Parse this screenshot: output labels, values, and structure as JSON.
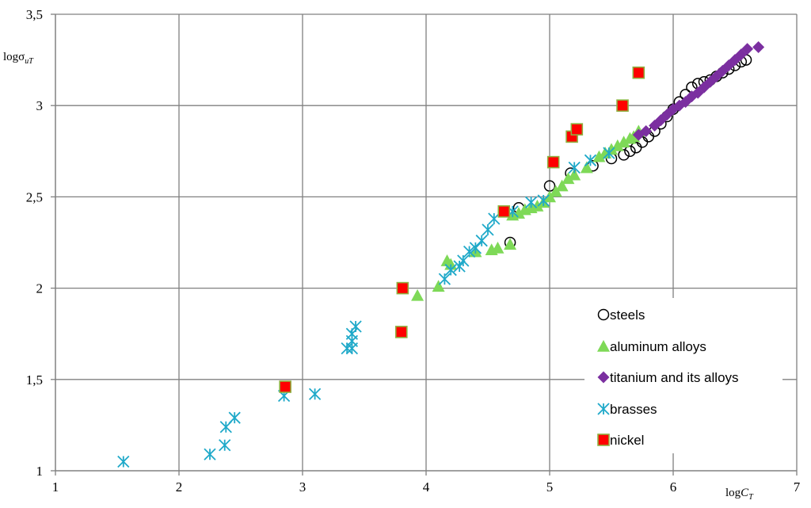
{
  "chart_data": {
    "type": "scatter",
    "xlim": [
      1,
      7
    ],
    "ylim": [
      1,
      3.5
    ],
    "x_ticks": [
      1,
      2,
      3,
      4,
      5,
      6,
      7
    ],
    "y_ticks": [
      1,
      1.5,
      2,
      2.5,
      3,
      3.5
    ],
    "x_tick_labels": [
      "1",
      "2",
      "3",
      "4",
      "5",
      "6",
      "7"
    ],
    "y_tick_labels": [
      "1",
      "1,5",
      "2",
      "2,5",
      "3",
      "3,5"
    ],
    "xlabel": {
      "prefix": "log",
      "main": "C",
      "sub": "T"
    },
    "ylabel": {
      "prefix": "log",
      "main": "σ",
      "sub": "uT"
    },
    "grid": true,
    "legend_position": "bottom-right",
    "colors": {
      "steels": "#000000",
      "aluminum": "#7ED957",
      "titanium": "#7B2FA0",
      "brasses": "#1FA9C9",
      "nickel_fill": "#FF0000",
      "nickel_border": "#8FB040",
      "grid": "#808080"
    },
    "series": [
      {
        "name": "steels",
        "marker": "circle-open",
        "points": [
          [
            4.68,
            2.25
          ],
          [
            4.75,
            2.44
          ],
          [
            5.0,
            2.56
          ],
          [
            5.17,
            2.63
          ],
          [
            5.35,
            2.67
          ],
          [
            5.5,
            2.71
          ],
          [
            5.6,
            2.73
          ],
          [
            5.65,
            2.75
          ],
          [
            5.7,
            2.77
          ],
          [
            5.75,
            2.8
          ],
          [
            5.8,
            2.83
          ],
          [
            5.85,
            2.86
          ],
          [
            5.9,
            2.9
          ],
          [
            5.95,
            2.94
          ],
          [
            6.0,
            2.98
          ],
          [
            6.05,
            3.02
          ],
          [
            6.1,
            3.06
          ],
          [
            6.15,
            3.1
          ],
          [
            6.2,
            3.12
          ],
          [
            6.25,
            3.13
          ],
          [
            6.3,
            3.14
          ],
          [
            6.35,
            3.16
          ],
          [
            6.4,
            3.18
          ],
          [
            6.45,
            3.2
          ],
          [
            6.5,
            3.22
          ],
          [
            6.55,
            3.24
          ],
          [
            6.59,
            3.25
          ]
        ]
      },
      {
        "name": "aluminum alloys",
        "marker": "triangle",
        "points": [
          [
            3.93,
            1.96
          ],
          [
            4.1,
            2.01
          ],
          [
            4.17,
            2.15
          ],
          [
            4.2,
            2.13
          ],
          [
            4.4,
            2.2
          ],
          [
            4.53,
            2.21
          ],
          [
            4.58,
            2.22
          ],
          [
            4.68,
            2.24
          ],
          [
            4.7,
            2.4
          ],
          [
            4.75,
            2.41
          ],
          [
            4.8,
            2.43
          ],
          [
            4.85,
            2.44
          ],
          [
            4.9,
            2.45
          ],
          [
            4.95,
            2.47
          ],
          [
            5.0,
            2.5
          ],
          [
            5.05,
            2.53
          ],
          [
            5.1,
            2.56
          ],
          [
            5.15,
            2.6
          ],
          [
            5.2,
            2.62
          ],
          [
            5.3,
            2.66
          ],
          [
            5.4,
            2.72
          ],
          [
            5.45,
            2.74
          ],
          [
            5.5,
            2.76
          ],
          [
            5.55,
            2.78
          ],
          [
            5.6,
            2.8
          ],
          [
            5.65,
            2.82
          ],
          [
            5.68,
            2.83
          ],
          [
            5.72,
            2.86
          ]
        ]
      },
      {
        "name": "titanium and its alloys",
        "marker": "diamond",
        "points": [
          [
            5.72,
            2.84
          ],
          [
            5.78,
            2.86
          ],
          [
            5.85,
            2.89
          ],
          [
            5.9,
            2.92
          ],
          [
            5.95,
            2.95
          ],
          [
            6.0,
            2.98
          ],
          [
            6.05,
            3.0
          ],
          [
            6.1,
            3.02
          ],
          [
            6.15,
            3.05
          ],
          [
            6.2,
            3.07
          ],
          [
            6.25,
            3.1
          ],
          [
            6.3,
            3.13
          ],
          [
            6.35,
            3.16
          ],
          [
            6.4,
            3.19
          ],
          [
            6.45,
            3.22
          ],
          [
            6.5,
            3.25
          ],
          [
            6.55,
            3.28
          ],
          [
            6.6,
            3.31
          ],
          [
            6.69,
            3.32
          ]
        ]
      },
      {
        "name": "brasses",
        "marker": "asterisk",
        "points": [
          [
            1.55,
            1.05
          ],
          [
            2.25,
            1.09
          ],
          [
            2.37,
            1.14
          ],
          [
            2.38,
            1.24
          ],
          [
            2.45,
            1.29
          ],
          [
            2.85,
            1.41
          ],
          [
            3.1,
            1.42
          ],
          [
            3.36,
            1.67
          ],
          [
            3.4,
            1.67
          ],
          [
            3.4,
            1.71
          ],
          [
            3.4,
            1.75
          ],
          [
            3.43,
            1.79
          ],
          [
            4.15,
            2.05
          ],
          [
            4.2,
            2.1
          ],
          [
            4.27,
            2.12
          ],
          [
            4.3,
            2.15
          ],
          [
            4.35,
            2.2
          ],
          [
            4.4,
            2.22
          ],
          [
            4.45,
            2.26
          ],
          [
            4.5,
            2.32
          ],
          [
            4.55,
            2.38
          ],
          [
            4.7,
            2.42
          ],
          [
            4.85,
            2.47
          ],
          [
            4.95,
            2.48
          ],
          [
            5.2,
            2.66
          ],
          [
            5.33,
            2.7
          ],
          [
            5.48,
            2.74
          ]
        ]
      },
      {
        "name": "nickel",
        "marker": "square",
        "points": [
          [
            2.86,
            1.46
          ],
          [
            3.8,
            1.76
          ],
          [
            3.81,
            2.0
          ],
          [
            4.63,
            2.42
          ],
          [
            5.03,
            2.69
          ],
          [
            5.18,
            2.83
          ],
          [
            5.22,
            2.87
          ],
          [
            5.59,
            3.0
          ],
          [
            5.72,
            3.18
          ]
        ]
      }
    ]
  }
}
